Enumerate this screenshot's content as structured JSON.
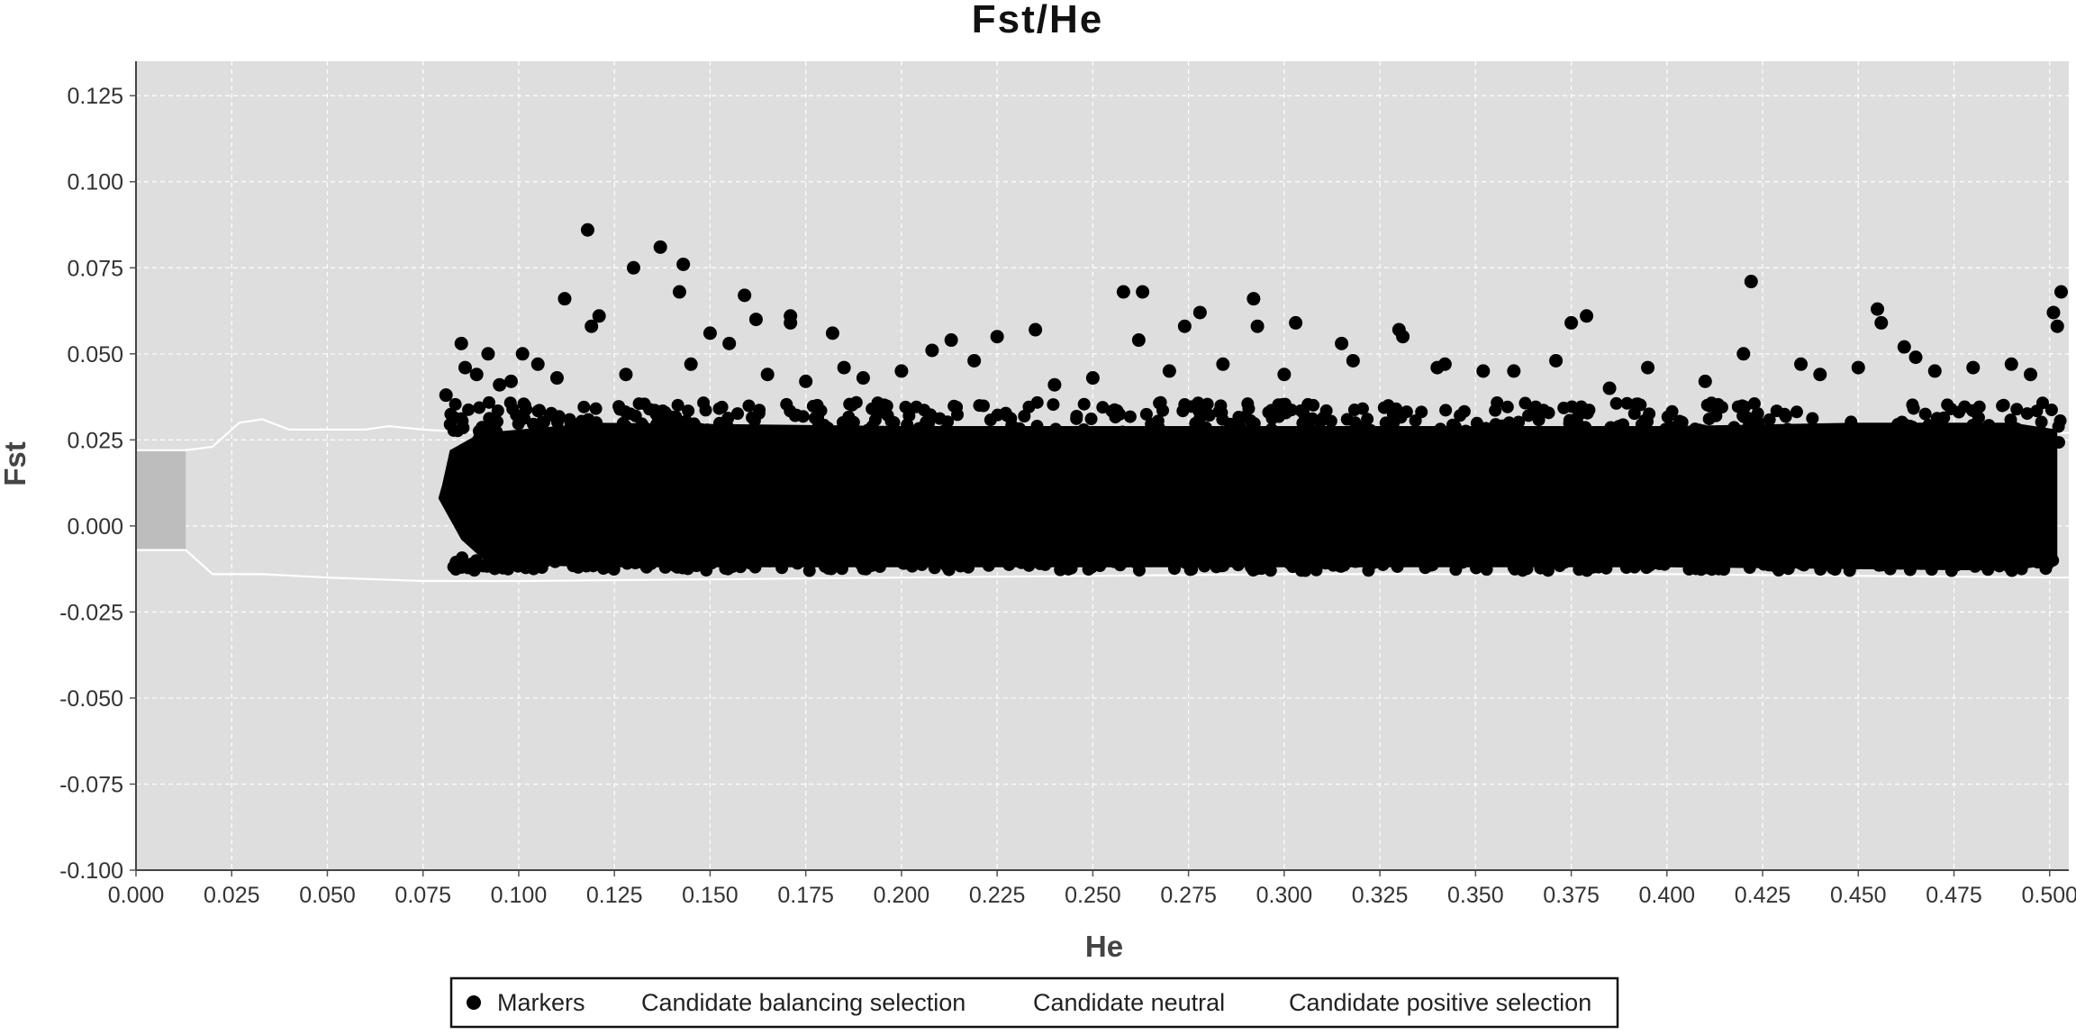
{
  "chart_data": {
    "type": "scatter",
    "title": "Fst/He",
    "xlabel": "He",
    "ylabel": "Fst",
    "xlim": [
      0.0,
      0.505
    ],
    "ylim": [
      -0.1,
      0.135
    ],
    "x_ticks": [
      "0.000",
      "0.025",
      "0.050",
      "0.075",
      "0.100",
      "0.125",
      "0.150",
      "0.175",
      "0.200",
      "0.225",
      "0.250",
      "0.275",
      "0.300",
      "0.325",
      "0.350",
      "0.375",
      "0.400",
      "0.425",
      "0.450",
      "0.475",
      "0.500"
    ],
    "y_ticks": [
      "-0.100",
      "-0.075",
      "-0.050",
      "-0.025",
      "0.000",
      "0.025",
      "0.050",
      "0.075",
      "0.100",
      "0.125"
    ],
    "grid": true,
    "background_color": "#dedede",
    "marker_color": "#000000",
    "legend": {
      "placement": "bottom",
      "entries": [
        "Markers",
        "Candidate balancing selection",
        "Candidate neutral",
        "Candidate positive selection"
      ]
    },
    "neutral_band": {
      "shaded_region": {
        "x": [
          0.0,
          0.013
        ],
        "y": [
          -0.007,
          0.022
        ]
      },
      "upper": {
        "x": [
          0.0,
          0.013,
          0.02,
          0.027,
          0.033,
          0.04,
          0.05,
          0.06,
          0.066,
          0.075,
          0.09,
          0.15,
          0.25,
          0.35,
          0.45,
          0.505
        ],
        "y": [
          0.022,
          0.022,
          0.023,
          0.03,
          0.031,
          0.028,
          0.028,
          0.028,
          0.029,
          0.028,
          0.027,
          0.027,
          0.027,
          0.027,
          0.027,
          0.027
        ]
      },
      "lower": {
        "x": [
          0.0,
          0.013,
          0.02,
          0.033,
          0.05,
          0.075,
          0.1,
          0.2,
          0.3,
          0.4,
          0.5,
          0.505
        ],
        "y": [
          -0.007,
          -0.007,
          -0.014,
          -0.014,
          -0.015,
          -0.016,
          -0.016,
          -0.015,
          -0.014,
          -0.014,
          -0.015,
          -0.015
        ]
      }
    },
    "series": [
      {
        "name": "Markers",
        "x": [
          0.118,
          0.137,
          0.13,
          0.143,
          0.142,
          0.112,
          0.159,
          0.171,
          0.171,
          0.182,
          0.121,
          0.119,
          0.258,
          0.263,
          0.292,
          0.303,
          0.422,
          0.455,
          0.456,
          0.503,
          0.501,
          0.502,
          0.278,
          0.262,
          0.274,
          0.293,
          0.33,
          0.331,
          0.375,
          0.379,
          0.162,
          0.15,
          0.155,
          0.101,
          0.092,
          0.085,
          0.086,
          0.081,
          0.105,
          0.213,
          0.225,
          0.235,
          0.208,
          0.219,
          0.185,
          0.315,
          0.352,
          0.42,
          0.435,
          0.462,
          0.465,
          0.47,
          0.48,
          0.49,
          0.495,
          0.45,
          0.44,
          0.41,
          0.395,
          0.385,
          0.371,
          0.36,
          0.34,
          0.342,
          0.318,
          0.3,
          0.284,
          0.27,
          0.25,
          0.24,
          0.2,
          0.19,
          0.175,
          0.165,
          0.145,
          0.128,
          0.11,
          0.098,
          0.095,
          0.089
        ],
        "y": [
          0.086,
          0.081,
          0.075,
          0.076,
          0.068,
          0.066,
          0.067,
          0.061,
          0.059,
          0.056,
          0.061,
          0.058,
          0.068,
          0.068,
          0.066,
          0.059,
          0.071,
          0.063,
          0.059,
          0.068,
          0.062,
          0.058,
          0.062,
          0.054,
          0.058,
          0.058,
          0.057,
          0.055,
          0.059,
          0.061,
          0.06,
          0.056,
          0.053,
          0.05,
          0.05,
          0.053,
          0.046,
          0.038,
          0.047,
          0.054,
          0.055,
          0.057,
          0.051,
          0.048,
          0.046,
          0.053,
          0.045,
          0.05,
          0.047,
          0.052,
          0.049,
          0.045,
          0.046,
          0.047,
          0.044,
          0.046,
          0.044,
          0.042,
          0.046,
          0.04,
          0.048,
          0.045,
          0.046,
          0.047,
          0.048,
          0.044,
          0.047,
          0.045,
          0.043,
          0.041,
          0.045,
          0.043,
          0.042,
          0.044,
          0.047,
          0.044,
          0.043,
          0.042,
          0.041,
          0.044
        ]
      }
    ]
  }
}
